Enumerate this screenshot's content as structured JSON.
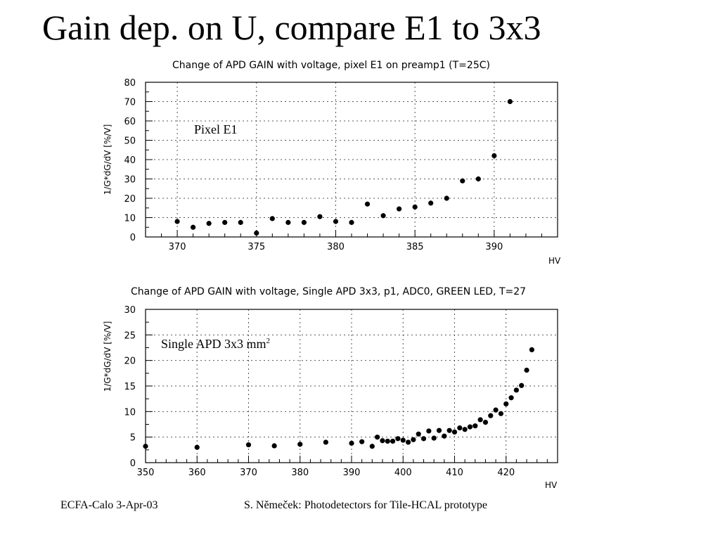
{
  "slide": {
    "title": "Gain dep. on U, compare E1 to 3x3",
    "footer_left": "ECFA-Calo 3-Apr-03",
    "footer_right": "S. Němeček: Photodetectors for Tile-HCAL prototype"
  },
  "chart_data": [
    {
      "type": "scatter",
      "title": "Change of APD GAIN with voltage, pixel E1 on preamp1 (T=25C)",
      "xlabel": "HV",
      "ylabel": "1/G*dG/dV [%/V]",
      "annotation": "Pixel E1",
      "xlim": [
        368,
        394
      ],
      "ylim": [
        0,
        80
      ],
      "xticks": [
        370,
        375,
        380,
        385,
        390
      ],
      "yticks": [
        0,
        10,
        20,
        30,
        40,
        50,
        60,
        70,
        80
      ],
      "grid": true,
      "x": [
        370,
        371,
        372,
        373,
        374,
        375,
        376,
        377,
        378,
        379,
        380,
        381,
        382,
        383,
        384,
        385,
        386,
        387,
        388,
        389,
        390,
        391
      ],
      "y": [
        8,
        5,
        7,
        7.5,
        7.5,
        2,
        9.5,
        7.5,
        7.5,
        10.5,
        8,
        7.5,
        17,
        11,
        14.5,
        15.5,
        17.5,
        20,
        29,
        30,
        42,
        70
      ]
    },
    {
      "type": "scatter",
      "title": "Change of APD GAIN with voltage, Single APD 3x3, p1, ADC0, GREEN LED, T=27",
      "xlabel": "HV",
      "ylabel": "1/G*dG/dV [%/V]",
      "annotation": "Single APD 3x3 mm",
      "annotation_sup": "2",
      "xlim": [
        350,
        430
      ],
      "ylim": [
        0,
        30
      ],
      "xticks": [
        350,
        360,
        370,
        380,
        390,
        400,
        410,
        420
      ],
      "yticks": [
        0,
        5,
        10,
        15,
        20,
        25,
        30
      ],
      "grid": true,
      "x": [
        350,
        360,
        370,
        375,
        380,
        385,
        390,
        392,
        394,
        395,
        396,
        397,
        398,
        399,
        400,
        401,
        402,
        403,
        404,
        405,
        406,
        407,
        408,
        409,
        410,
        411,
        412,
        413,
        414,
        415,
        416,
        417,
        418,
        419,
        420,
        421,
        422,
        423,
        424,
        425
      ],
      "y": [
        3.2,
        3.0,
        3.5,
        3.3,
        3.6,
        4.0,
        3.8,
        4.1,
        3.2,
        5.0,
        4.3,
        4.2,
        4.2,
        4.7,
        4.4,
        4.0,
        4.5,
        5.6,
        4.7,
        6.2,
        4.8,
        6.3,
        5.2,
        6.3,
        6.0,
        6.8,
        6.5,
        7.0,
        7.2,
        8.4,
        7.9,
        9.2,
        10.3,
        9.6,
        11.5,
        12.7,
        14.2,
        15.1,
        18.1,
        22.1
      ]
    }
  ]
}
